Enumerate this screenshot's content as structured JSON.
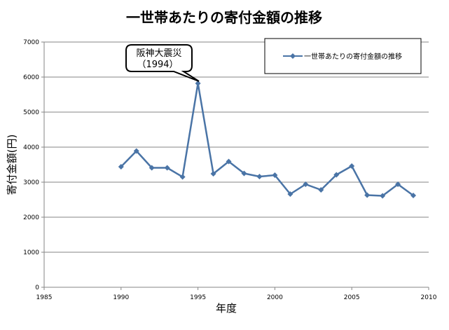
{
  "chart_data": {
    "type": "line",
    "title": "一世帯あたりの寄付金額の推移",
    "xlabel": "年度",
    "ylabel": "寄付金額(円)",
    "xlim": [
      1985,
      2010
    ],
    "ylim": [
      0,
      7000
    ],
    "xticks": [
      1985,
      1990,
      1995,
      2000,
      2005,
      2010
    ],
    "yticks": [
      0,
      1000,
      2000,
      3000,
      4000,
      5000,
      6000,
      7000
    ],
    "grid": true,
    "legend_position": "top-right",
    "series": [
      {
        "name": "一世帯あたりの寄付金額の推移",
        "color": "#4a74a6",
        "x": [
          1990,
          1991,
          1992,
          1993,
          1994,
          1995,
          1996,
          1997,
          1998,
          1999,
          2000,
          2001,
          2002,
          2003,
          2004,
          2005,
          2006,
          2007,
          2008,
          2009
        ],
        "y": [
          3440,
          3890,
          3410,
          3410,
          3150,
          5820,
          3240,
          3590,
          3250,
          3160,
          3200,
          2660,
          2940,
          2780,
          3210,
          3460,
          2630,
          2610,
          2940,
          2620
        ]
      }
    ],
    "annotations": [
      {
        "line1": "阪神大震災",
        "line2": "（1994）",
        "x": 1995,
        "y": 5820
      }
    ]
  }
}
